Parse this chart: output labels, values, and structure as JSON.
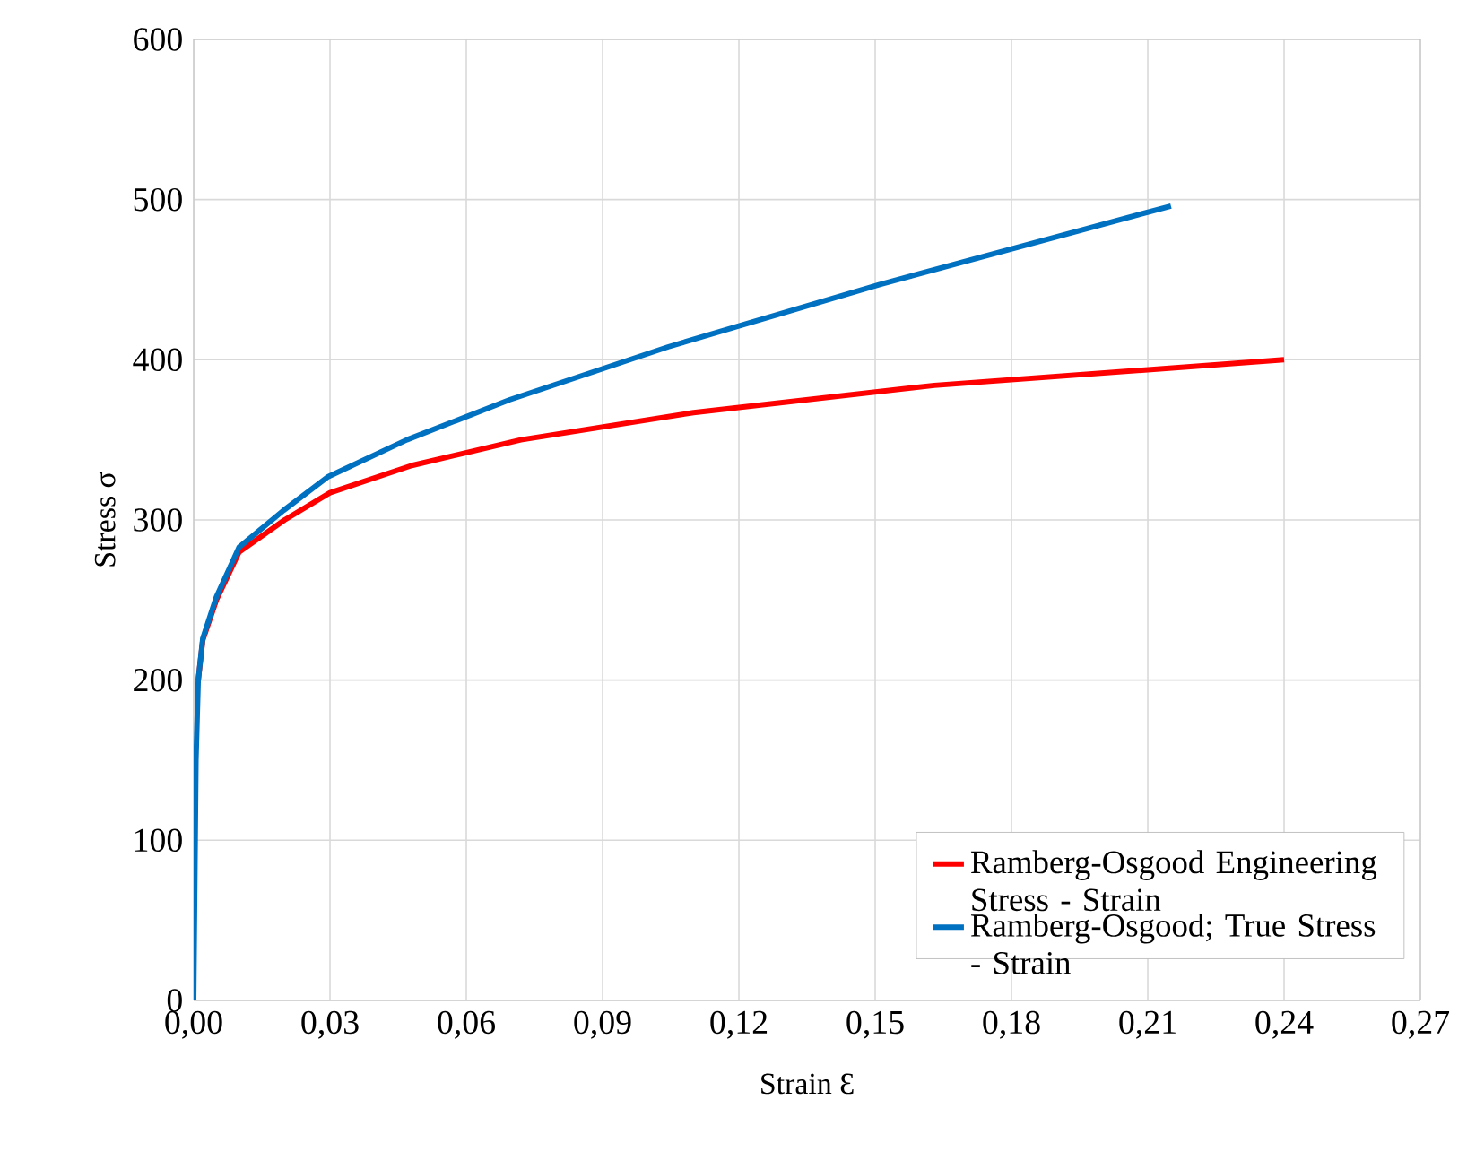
{
  "chart_data": {
    "type": "line",
    "xlabel": "Strain Ɛ",
    "ylabel": "Stress σ",
    "xlim": [
      0,
      0.27
    ],
    "ylim": [
      0,
      600
    ],
    "xticks": [
      {
        "value": 0,
        "label": "0,00"
      },
      {
        "value": 0.03,
        "label": "0,03"
      },
      {
        "value": 0.06,
        "label": "0,06"
      },
      {
        "value": 0.09,
        "label": "0,09"
      },
      {
        "value": 0.12,
        "label": "0,12"
      },
      {
        "value": 0.15,
        "label": "0,15"
      },
      {
        "value": 0.18,
        "label": "0,18"
      },
      {
        "value": 0.21,
        "label": "0,21"
      },
      {
        "value": 0.24,
        "label": "0,24"
      },
      {
        "value": 0.27,
        "label": "0,27"
      }
    ],
    "yticks": [
      0,
      100,
      200,
      300,
      400,
      500,
      600
    ],
    "grid": true,
    "legend": "bottom right",
    "marker": "none",
    "line_style": "solid",
    "series": [
      {
        "name": "Ramberg-Osgood Engineering Stress - Strain",
        "color": "#ff0000",
        "x": [
          0.001,
          0.002,
          0.005,
          0.01,
          0.02,
          0.03,
          0.048,
          0.072,
          0.11,
          0.163,
          0.24
        ],
        "values": [
          200,
          225,
          250,
          280,
          300,
          317,
          334,
          350,
          367,
          384,
          400
        ]
      },
      {
        "name": "Ramberg-Osgood; True Stress - Strain",
        "color": "#0070c0",
        "x": [
          0,
          0.0005,
          0.001,
          0.002,
          0.005,
          0.01,
          0.0198,
          0.0296,
          0.0469,
          0.0695,
          0.1044,
          0.151,
          0.2151
        ],
        "values": [
          0,
          150,
          200,
          226,
          252,
          283,
          306,
          327,
          350,
          375,
          408,
          447,
          496
        ]
      }
    ]
  }
}
